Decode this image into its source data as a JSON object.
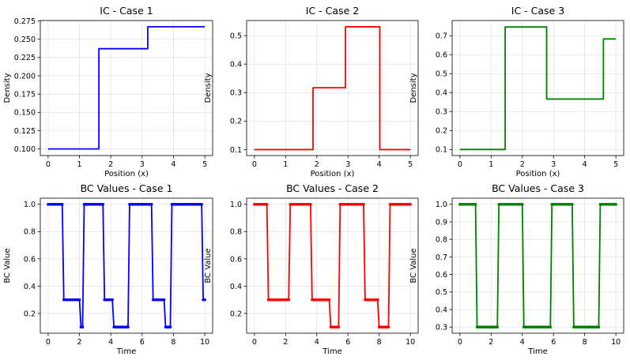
{
  "figure": {
    "background": "#ffffff"
  },
  "chart_data": [
    {
      "type": "line",
      "title": "IC - Case 1",
      "xlabel": "Position (x)",
      "ylabel": "Density",
      "color": "#0000ff",
      "xlim": [
        -0.25,
        5.25
      ],
      "ylim": [
        0.091,
        0.2755
      ],
      "xticks": [
        0,
        1,
        2,
        3,
        4,
        5
      ],
      "xtick_labels": [
        "0",
        "1",
        "2",
        "3",
        "4",
        "5"
      ],
      "yticks": [
        0.1,
        0.125,
        0.15,
        0.175,
        0.2,
        0.225,
        0.25,
        0.275
      ],
      "ytick_labels": [
        "0.100",
        "0.125",
        "0.150",
        "0.175",
        "0.200",
        "0.225",
        "0.250",
        "0.275"
      ],
      "grid": true,
      "x": [
        0,
        1.62,
        1.62,
        3.18,
        3.18,
        5.0
      ],
      "y": [
        0.1,
        0.1,
        0.237,
        0.237,
        0.267,
        0.267
      ],
      "markers": false
    },
    {
      "type": "line",
      "title": "IC - Case 2",
      "xlabel": "Position (x)",
      "ylabel": "Density",
      "color": "#ff0000",
      "xlim": [
        -0.25,
        5.25
      ],
      "ylim": [
        0.079,
        0.553
      ],
      "xticks": [
        0,
        1,
        2,
        3,
        4,
        5
      ],
      "xtick_labels": [
        "0",
        "1",
        "2",
        "3",
        "4",
        "5"
      ],
      "yticks": [
        0.1,
        0.2,
        0.3,
        0.4,
        0.5
      ],
      "ytick_labels": [
        "0.1",
        "0.2",
        "0.3",
        "0.4",
        "0.5"
      ],
      "grid": true,
      "x": [
        0,
        1.88,
        1.88,
        2.92,
        2.92,
        4.02,
        4.02,
        5.0
      ],
      "y": [
        0.1,
        0.1,
        0.317,
        0.317,
        0.531,
        0.531,
        0.1,
        0.1
      ],
      "markers": false
    },
    {
      "type": "line",
      "title": "IC - Case 3",
      "xlabel": "Position (x)",
      "ylabel": "Density",
      "color": "#008000",
      "xlim": [
        -0.25,
        5.25
      ],
      "ylim": [
        0.068,
        0.78
      ],
      "xticks": [
        0,
        1,
        2,
        3,
        4,
        5
      ],
      "xtick_labels": [
        "0",
        "1",
        "2",
        "3",
        "4",
        "5"
      ],
      "yticks": [
        0.1,
        0.2,
        0.3,
        0.4,
        0.5,
        0.6,
        0.7
      ],
      "ytick_labels": [
        "0.1",
        "0.2",
        "0.3",
        "0.4",
        "0.5",
        "0.6",
        "0.7"
      ],
      "grid": true,
      "x": [
        0,
        1.45,
        1.45,
        2.78,
        2.78,
        4.6,
        4.6,
        5.0
      ],
      "y": [
        0.1,
        0.1,
        0.746,
        0.746,
        0.366,
        0.366,
        0.683,
        0.683
      ],
      "markers": false
    },
    {
      "type": "line",
      "title": "BC Values - Case 1",
      "xlabel": "Time",
      "ylabel": "BC Value",
      "color": "#0000ff",
      "xlim": [
        -0.5,
        10.5
      ],
      "ylim": [
        0.055,
        1.045
      ],
      "xticks": [
        0,
        2,
        4,
        6,
        8,
        10
      ],
      "xtick_labels": [
        "0",
        "2",
        "4",
        "6",
        "8",
        "10"
      ],
      "yticks": [
        0.2,
        0.4,
        0.6,
        0.8,
        1.0
      ],
      "ytick_labels": [
        "0.2",
        "0.4",
        "0.6",
        "0.8",
        "1.0"
      ],
      "grid": true,
      "markers": true,
      "step": 0.1,
      "segments": [
        {
          "end": 0.9,
          "level": 1.0
        },
        {
          "end": 2.0,
          "level": 0.3
        },
        {
          "end": 2.2,
          "level": 0.1
        },
        {
          "end": 3.5,
          "level": 1.0
        },
        {
          "end": 4.1,
          "level": 0.3
        },
        {
          "end": 5.1,
          "level": 0.1
        },
        {
          "end": 6.6,
          "level": 1.0
        },
        {
          "end": 7.4,
          "level": 0.3
        },
        {
          "end": 7.8,
          "level": 0.1
        },
        {
          "end": 9.8,
          "level": 1.0
        },
        {
          "end": 10.0,
          "level": 0.3
        }
      ]
    },
    {
      "type": "line",
      "title": "BC Values - Case 2",
      "xlabel": "Time",
      "ylabel": "BC Value",
      "color": "#ff0000",
      "xlim": [
        -0.5,
        10.5
      ],
      "ylim": [
        0.055,
        1.045
      ],
      "xticks": [
        0,
        2,
        4,
        6,
        8,
        10
      ],
      "xtick_labels": [
        "0",
        "2",
        "4",
        "6",
        "8",
        "10"
      ],
      "yticks": [
        0.2,
        0.4,
        0.6,
        0.8,
        1.0
      ],
      "ytick_labels": [
        "0.2",
        "0.4",
        "0.6",
        "0.8",
        "1.0"
      ],
      "grid": true,
      "markers": true,
      "step": 0.1,
      "segments": [
        {
          "end": 0.8,
          "level": 1.0
        },
        {
          "end": 2.2,
          "level": 0.3
        },
        {
          "end": 3.6,
          "level": 1.0
        },
        {
          "end": 4.8,
          "level": 0.3
        },
        {
          "end": 5.4,
          "level": 0.1
        },
        {
          "end": 7.0,
          "level": 1.0
        },
        {
          "end": 7.9,
          "level": 0.3
        },
        {
          "end": 8.6,
          "level": 0.1
        },
        {
          "end": 10.0,
          "level": 1.0
        }
      ]
    },
    {
      "type": "line",
      "title": "BC Values - Case 3",
      "xlabel": "Time",
      "ylabel": "BC Value",
      "color": "#008000",
      "xlim": [
        -0.5,
        10.5
      ],
      "ylim": [
        0.265,
        1.035
      ],
      "xticks": [
        0,
        2,
        4,
        6,
        8,
        10
      ],
      "xtick_labels": [
        "0",
        "2",
        "4",
        "6",
        "8",
        "10"
      ],
      "yticks": [
        0.3,
        0.4,
        0.5,
        0.6,
        0.7,
        0.8,
        0.9,
        1.0
      ],
      "ytick_labels": [
        "0.3",
        "0.4",
        "0.5",
        "0.6",
        "0.7",
        "0.8",
        "0.9",
        "1.0"
      ],
      "grid": true,
      "markers": true,
      "step": 0.1,
      "segments": [
        {
          "end": 1.0,
          "level": 1.0
        },
        {
          "end": 2.4,
          "level": 0.3
        },
        {
          "end": 4.0,
          "level": 1.0
        },
        {
          "end": 5.8,
          "level": 0.3
        },
        {
          "end": 7.2,
          "level": 1.0
        },
        {
          "end": 8.9,
          "level": 0.3
        },
        {
          "end": 10.0,
          "level": 1.0
        }
      ]
    }
  ]
}
